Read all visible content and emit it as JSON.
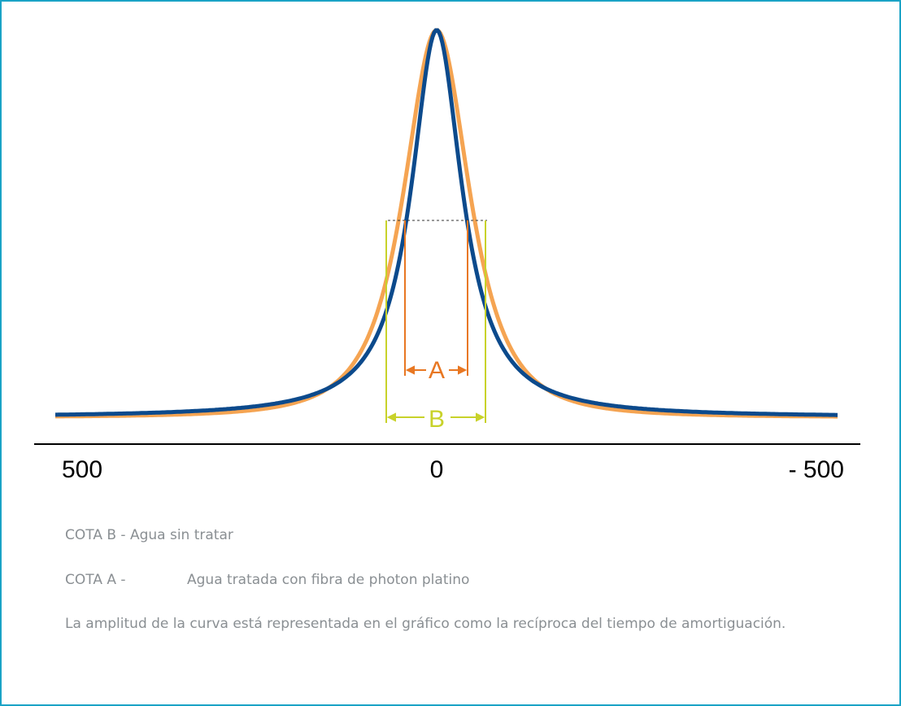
{
  "axis": {
    "labels": [
      "500",
      "0",
      "- 500"
    ]
  },
  "markers": {
    "a": "A",
    "b": "B"
  },
  "legend": {
    "cota_b": "COTA B - Agua sin tratar",
    "cota_a_label": "COTA A -",
    "cota_a_text": "Agua tratada con fibra de photon platino"
  },
  "note": "La amplitud de la curva está representada en el gráfico como la recíproca del tiempo de amortiguación."
}
